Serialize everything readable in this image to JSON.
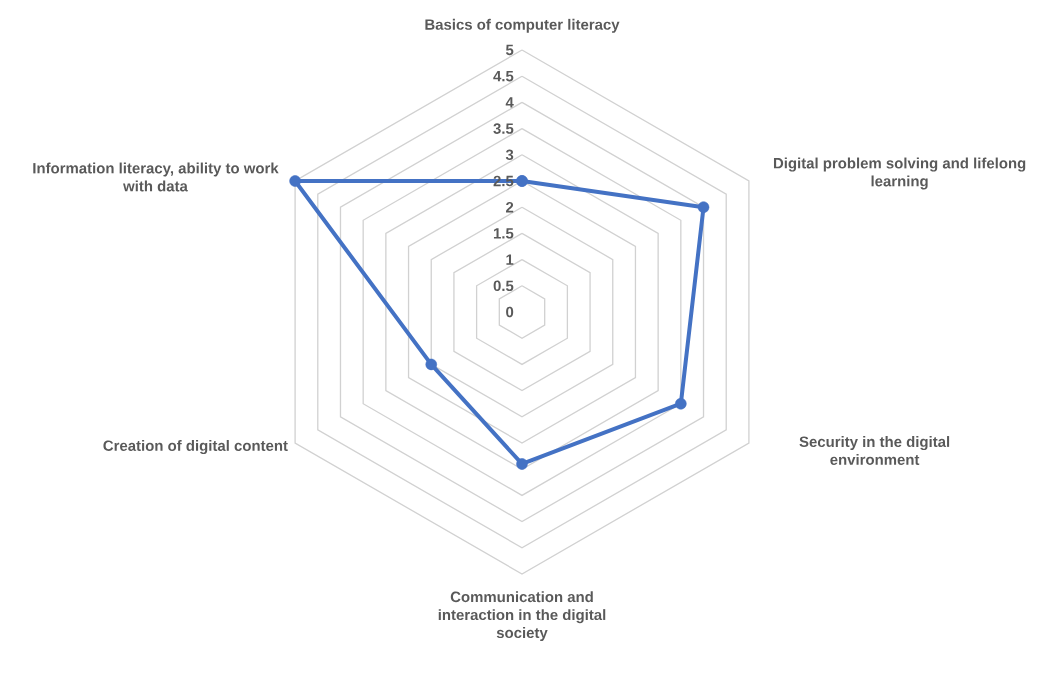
{
  "chart_data": {
    "type": "radar",
    "categories": [
      "Basics of computer literacy",
      "Digital problem solving and lifelong learning",
      "Security in the digital environment",
      "Communication and interaction in the digital society",
      "Creation of digital content",
      "Information literacy, ability to work with data"
    ],
    "series": [
      {
        "color": "#4472c4",
        "values": [
          2.5,
          4,
          3.5,
          2.9,
          2,
          5
        ]
      }
    ],
    "ylim": [
      0,
      5
    ],
    "yticks": [
      0,
      0.5,
      1,
      1.5,
      2,
      2.5,
      3,
      3.5,
      4,
      4.5,
      5
    ],
    "grid": true,
    "marker": "circle"
  }
}
